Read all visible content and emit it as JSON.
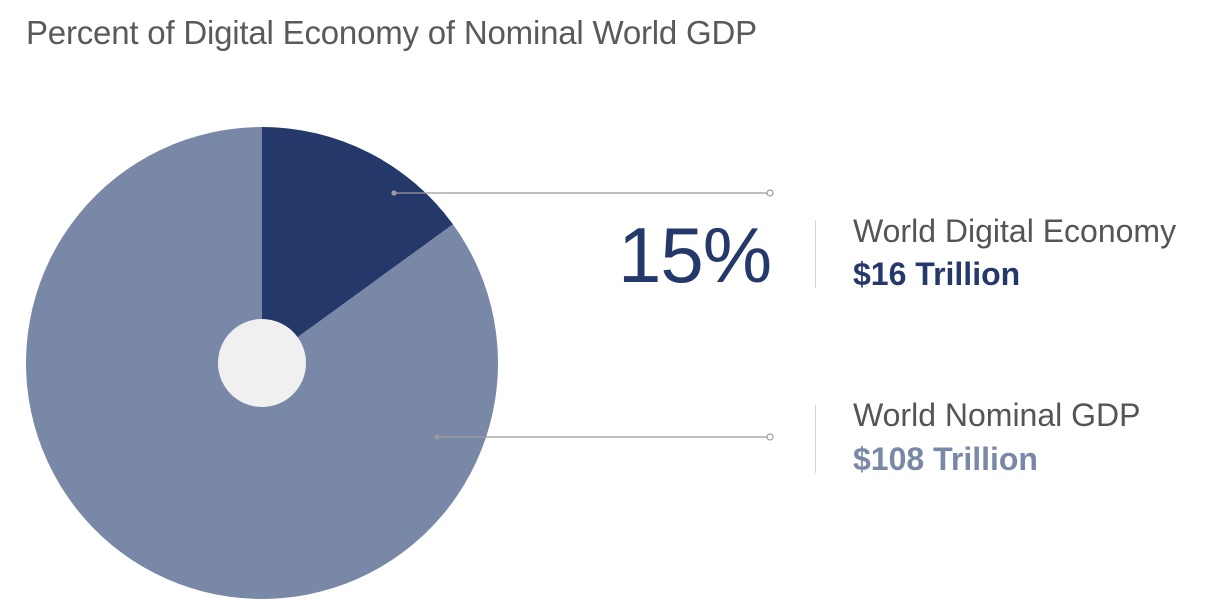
{
  "title": "Percent of Digital Economy of Nominal World GDP",
  "highlight_label": "15%",
  "legend": [
    {
      "name": "World Digital Economy",
      "value_label": "$16 Trillion",
      "color": "#24386a"
    },
    {
      "name": "World Nominal GDP",
      "value_label": "$108 Trillion",
      "color": "#7a88a8"
    }
  ],
  "colors": {
    "center_hole": "#f0f0f0",
    "leader_line": "#9a9a9a",
    "divider": "#d6d6d6"
  },
  "chart_data": {
    "type": "pie",
    "title": "Percent of Digital Economy of Nominal World GDP",
    "slices": [
      {
        "label": "World Digital Economy",
        "value": 16,
        "unit": "Trillion USD",
        "percent": 15,
        "color": "#24386a"
      },
      {
        "label": "World Nominal GDP",
        "value": 108,
        "unit": "Trillion USD",
        "color": "#7a88a8"
      }
    ],
    "annotation": "15%"
  }
}
